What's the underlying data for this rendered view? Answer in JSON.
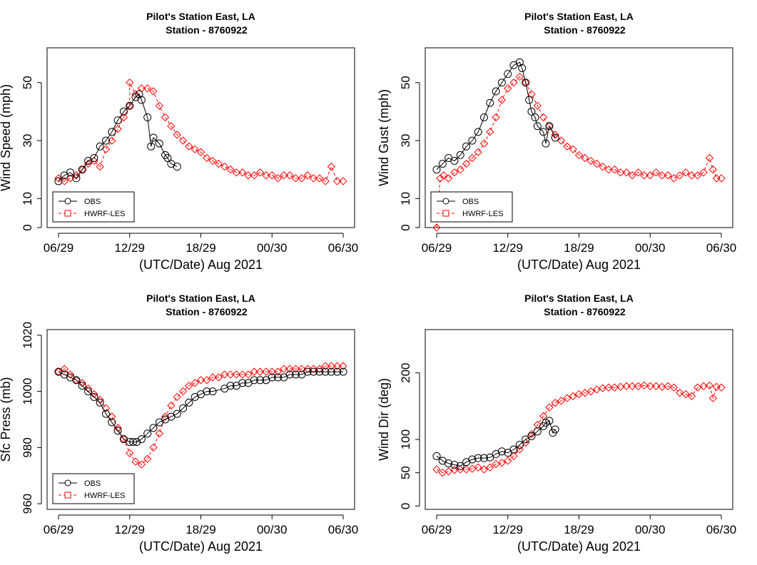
{
  "figure": {
    "colors": {
      "obs": "#000000",
      "model": "#ff0000",
      "axis": "#000000"
    },
    "x_tick_labels": [
      "06/29",
      "12/29",
      "18/29",
      "00/30",
      "06/30"
    ],
    "xlabel": "(UTC/Date) Aug 2021"
  },
  "chart_data": [
    {
      "type": "line",
      "title": "Pilot's Station East, LA",
      "subtitle": "Station - 8760922",
      "xlabel": "(UTC/Date) Aug 2021",
      "ylabel": "Wind Speed (mph)",
      "x_unit": "hours since 06 UTC Aug 29 2021",
      "xlim": [
        0,
        24
      ],
      "ylim": [
        0,
        62
      ],
      "yticks": [
        0,
        10,
        30,
        50
      ],
      "legend": {
        "position": "bottom-left",
        "entries": [
          "OBS",
          "HWRF-LES"
        ]
      },
      "series": [
        {
          "name": "OBS",
          "color": "#000000",
          "marker": "circle",
          "linestyle": "solid",
          "x": [
            0,
            0.5,
            1,
            1.5,
            2,
            2.5,
            3,
            3.5,
            4,
            4.5,
            5,
            5.5,
            6,
            6.5,
            6.8,
            7,
            7.5,
            7.8,
            8,
            8.5,
            9,
            9.2,
            9.5,
            10
          ],
          "y": [
            16,
            18,
            19,
            17,
            20,
            23,
            24,
            28,
            30,
            33,
            37,
            40,
            42,
            45,
            46,
            44,
            38,
            28,
            31,
            29,
            25,
            24,
            22,
            21
          ]
        },
        {
          "name": "HWRF-LES",
          "color": "#ff0000",
          "marker": "square",
          "linestyle": "dashed",
          "x": [
            0,
            0.5,
            1,
            1.5,
            2,
            2.5,
            3,
            3.5,
            4,
            4.5,
            5,
            5.5,
            6,
            6,
            6.5,
            7,
            7.5,
            8,
            8.5,
            9,
            9.5,
            10,
            10.5,
            11,
            11.5,
            12,
            12.5,
            13,
            13.5,
            14,
            14.5,
            15,
            15.5,
            16,
            16.5,
            17,
            17.5,
            18,
            18.5,
            19,
            19.5,
            20,
            20.5,
            21,
            21.5,
            22,
            22.5,
            23,
            23.5,
            24
          ],
          "y": [
            17,
            16,
            17,
            18,
            20,
            22,
            23,
            21,
            27,
            30,
            34,
            38,
            42,
            50,
            46,
            48,
            48,
            47,
            42,
            38,
            35,
            32,
            30,
            28,
            27,
            26,
            24,
            23,
            22,
            21,
            20,
            19,
            19,
            18,
            18,
            19,
            18,
            18,
            17,
            18,
            18,
            17,
            17,
            18,
            17,
            17,
            16,
            21,
            16,
            16
          ]
        }
      ]
    },
    {
      "type": "line",
      "title": "Pilot's Station East, LA",
      "subtitle": "Station - 8760922",
      "xlabel": "(UTC/Date) Aug 2021",
      "ylabel": "Wind Gust (mph)",
      "x_unit": "hours since 06 UTC Aug 29 2021",
      "xlim": [
        0,
        24
      ],
      "ylim": [
        0,
        62
      ],
      "yticks": [
        0,
        10,
        30,
        50
      ],
      "legend": {
        "position": "bottom-left",
        "entries": [
          "OBS",
          "HWRF-LES"
        ]
      },
      "series": [
        {
          "name": "OBS",
          "color": "#000000",
          "marker": "circle",
          "linestyle": "solid",
          "x": [
            0,
            0.5,
            1,
            1.5,
            2,
            2.5,
            3,
            3.5,
            4,
            4.5,
            5,
            5.5,
            6,
            6.5,
            7,
            7.2,
            7.5,
            7.8,
            8,
            8.3,
            8.5,
            9,
            9.2,
            9.5,
            10
          ],
          "y": [
            20,
            22,
            24,
            23,
            25,
            28,
            30,
            33,
            38,
            43,
            47,
            50,
            53,
            56,
            57,
            55,
            50,
            44,
            40,
            38,
            35,
            33,
            29,
            35,
            31
          ]
        },
        {
          "name": "HWRF-LES",
          "color": "#ff0000",
          "marker": "square",
          "linestyle": "dashed",
          "x": [
            0,
            0.3,
            0.6,
            1,
            1.5,
            2,
            2.5,
            3,
            3.5,
            4,
            4.5,
            5,
            5.5,
            6,
            6.5,
            7,
            7.5,
            8,
            8.5,
            9,
            9.5,
            10,
            10.5,
            11,
            11.5,
            12,
            12.5,
            13,
            13.5,
            14,
            14.5,
            15,
            15.5,
            16,
            16.5,
            17,
            17.5,
            18,
            18.5,
            19,
            19.5,
            20,
            20.5,
            21,
            21.5,
            22,
            22.5,
            23,
            23.3,
            23.6,
            24
          ],
          "y": [
            0,
            17,
            18,
            17,
            19,
            20,
            22,
            24,
            26,
            29,
            33,
            38,
            44,
            48,
            50,
            52,
            50,
            46,
            42,
            38,
            35,
            32,
            30,
            28,
            27,
            25,
            24,
            23,
            22,
            21,
            20,
            20,
            19,
            19,
            18,
            19,
            18,
            18,
            19,
            18,
            18,
            17,
            18,
            19,
            18,
            18,
            19,
            24,
            20,
            17,
            17
          ]
        }
      ]
    },
    {
      "type": "line",
      "title": "Pilot's Station East, LA",
      "subtitle": "Station - 8760922",
      "xlabel": "(UTC/Date) Aug 2021",
      "ylabel": "Sfc Press (mb)",
      "x_unit": "hours since 06 UTC Aug 29 2021",
      "xlim": [
        0,
        24
      ],
      "ylim": [
        958,
        1022
      ],
      "yticks": [
        960,
        980,
        1000,
        1020
      ],
      "legend": {
        "position": "bottom-left",
        "entries": [
          "OBS",
          "HWRF-LES"
        ]
      },
      "series": [
        {
          "name": "OBS",
          "color": "#000000",
          "marker": "circle",
          "linestyle": "solid",
          "x": [
            0,
            0.5,
            1,
            1.5,
            2,
            2.5,
            3,
            3.5,
            4,
            4.5,
            5,
            5.5,
            6,
            6.3,
            6.6,
            7,
            7.5,
            8,
            8.5,
            9,
            9.5,
            10,
            10.5,
            11,
            11.5,
            12,
            12.5,
            13,
            14,
            14.5,
            15,
            15.5,
            16,
            16.5,
            17,
            17.5,
            18,
            18.5,
            19,
            19.5,
            20,
            20.5,
            21,
            21.5,
            22,
            22.5,
            23,
            23.5,
            24
          ],
          "y": [
            1007,
            1006,
            1005,
            1004,
            1002,
            1000,
            998,
            996,
            992,
            989,
            986,
            983,
            982,
            982,
            982,
            983,
            985,
            987,
            989,
            990,
            991,
            992,
            994,
            996,
            998,
            999,
            1000,
            1000,
            1001,
            1002,
            1002,
            1003,
            1003,
            1004,
            1004,
            1004,
            1005,
            1005,
            1005,
            1006,
            1006,
            1006,
            1007,
            1007,
            1007,
            1007,
            1007,
            1007,
            1007
          ]
        },
        {
          "name": "HWRF-LES",
          "color": "#ff0000",
          "marker": "square",
          "linestyle": "dashed",
          "x": [
            0,
            0.5,
            1,
            1.5,
            2,
            2.5,
            3,
            3.5,
            4,
            4.5,
            5,
            5.5,
            6,
            6.5,
            7,
            7.5,
            8,
            8.5,
            9,
            9.5,
            10,
            10.5,
            11,
            11.5,
            12,
            12.5,
            13,
            13.5,
            14,
            14.5,
            15,
            15.5,
            16,
            16.5,
            17,
            17.5,
            18,
            18.5,
            19,
            19.5,
            20,
            20.5,
            21,
            21.5,
            22,
            22.5,
            23,
            23.5,
            24
          ],
          "y": [
            1007,
            1008,
            1006,
            1004,
            1003,
            1001,
            999,
            997,
            994,
            991,
            987,
            983,
            978,
            975,
            974,
            976,
            980,
            985,
            991,
            995,
            998,
            1000,
            1002,
            1003,
            1004,
            1004,
            1005,
            1005,
            1006,
            1006,
            1006,
            1006,
            1006,
            1007,
            1007,
            1007,
            1007,
            1007,
            1008,
            1008,
            1008,
            1008,
            1008,
            1008,
            1008,
            1009,
            1009,
            1009,
            1009
          ]
        }
      ]
    },
    {
      "type": "line",
      "title": "Pilot's Station East, LA",
      "subtitle": "Station - 8760922",
      "xlabel": "(UTC/Date) Aug 2021",
      "ylabel": "Wind Dir (deg)",
      "x_unit": "hours since 06 UTC Aug 29 2021",
      "xlim": [
        0,
        24
      ],
      "ylim": [
        -5,
        265
      ],
      "yticks": [
        0,
        50,
        100,
        200
      ],
      "legend": null,
      "series": [
        {
          "name": "OBS",
          "color": "#000000",
          "marker": "circle",
          "linestyle": "solid",
          "x": [
            0,
            0.5,
            1,
            1.5,
            2,
            2.5,
            3,
            3.5,
            4,
            4.5,
            5,
            5.5,
            6,
            6.5,
            7,
            7.5,
            8,
            8.5,
            9,
            9.2,
            9.5,
            9.8,
            10
          ],
          "y": [
            75,
            68,
            64,
            62,
            60,
            66,
            70,
            72,
            72,
            73,
            78,
            82,
            80,
            85,
            92,
            100,
            105,
            112,
            120,
            125,
            128,
            110,
            115
          ]
        },
        {
          "name": "HWRF-LES",
          "color": "#ff0000",
          "marker": "square",
          "linestyle": "dashed",
          "x": [
            0,
            0.5,
            1,
            1.5,
            2,
            2.5,
            3,
            3.5,
            4,
            4.5,
            5,
            5.5,
            6,
            6.5,
            7,
            7.5,
            8,
            8.5,
            9,
            9.5,
            10,
            10.5,
            11,
            11.5,
            12,
            12.5,
            13,
            13.5,
            14,
            14.5,
            15,
            15.5,
            16,
            16.5,
            17,
            17.5,
            18,
            18.5,
            19,
            19.5,
            20,
            20.5,
            21,
            21.5,
            22,
            22.5,
            23,
            23.3,
            23.6,
            24
          ],
          "y": [
            55,
            50,
            52,
            54,
            55,
            55,
            56,
            58,
            55,
            58,
            63,
            65,
            68,
            75,
            85,
            95,
            108,
            122,
            135,
            148,
            155,
            158,
            162,
            165,
            168,
            170,
            172,
            175,
            177,
            178,
            178,
            179,
            180,
            180,
            180,
            181,
            180,
            180,
            179,
            180,
            178,
            170,
            168,
            165,
            178,
            180,
            181,
            162,
            179,
            178
          ]
        }
      ]
    }
  ]
}
